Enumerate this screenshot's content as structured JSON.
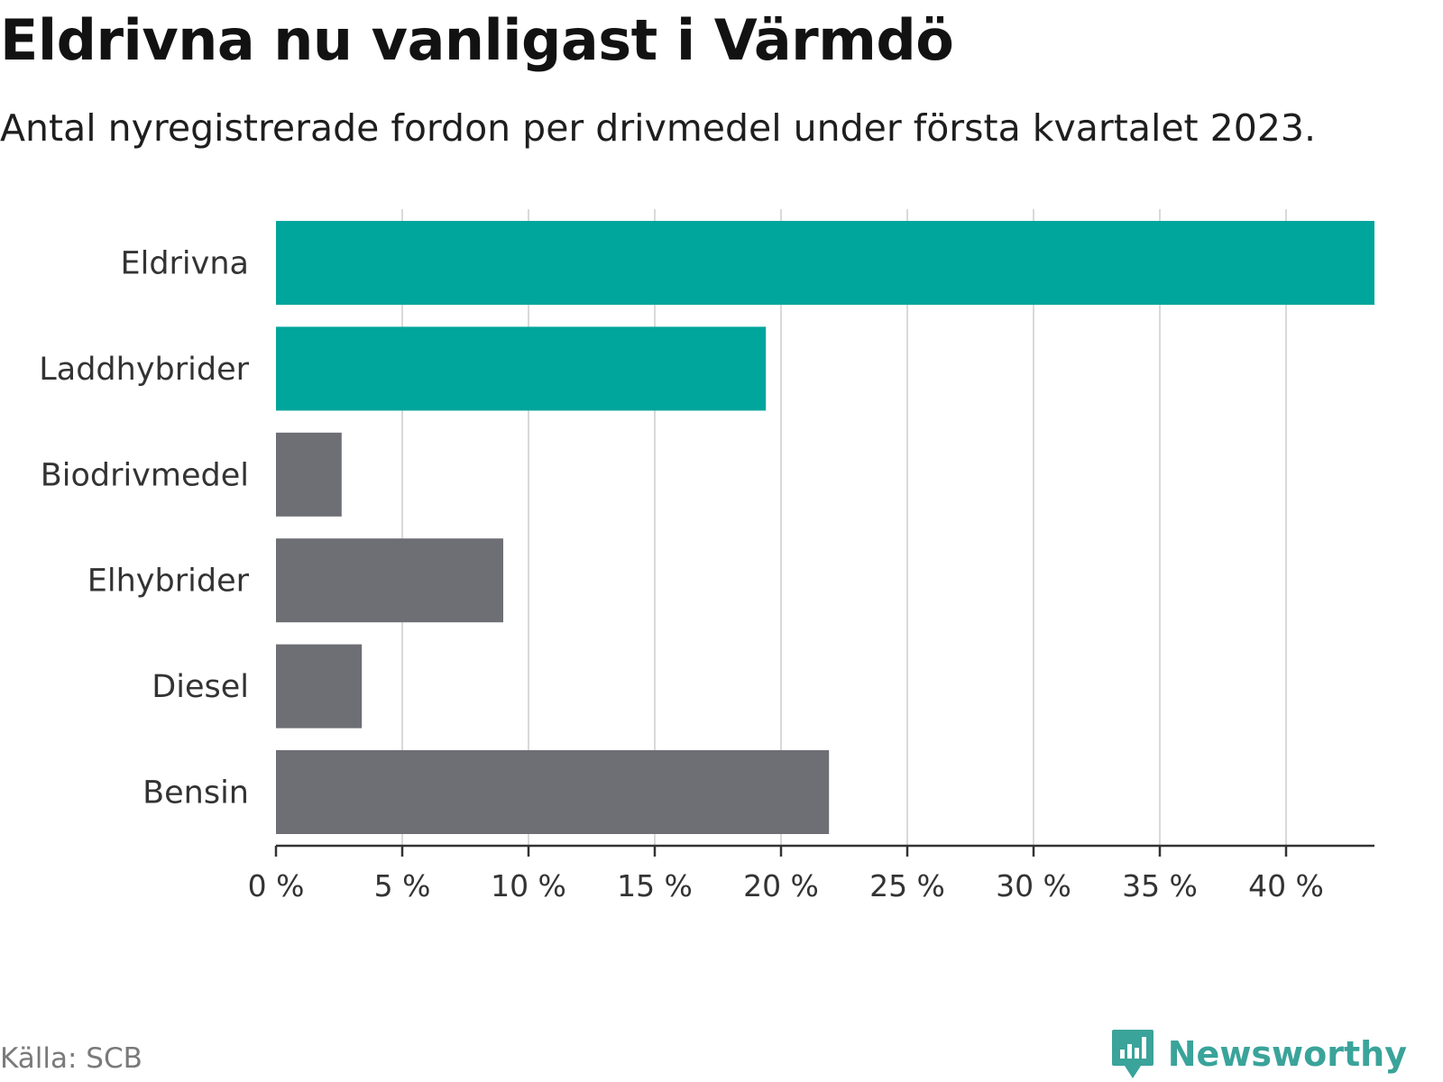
{
  "header": {
    "title": "Eldrivna nu vanligast i Värmdö",
    "subtitle": "Antal nyregistrerade fordon per drivmedel under första kvartalet 2023."
  },
  "footer": {
    "source": "Källa: SCB",
    "brand": "Newsworthy"
  },
  "colors": {
    "highlight": "#00a59b",
    "default": "#6e6e75",
    "grid": "#d9d9d9",
    "axis": "#333333",
    "brand": "#3aa39a"
  },
  "chart_data": {
    "type": "bar",
    "orientation": "horizontal",
    "title": "Eldrivna nu vanligast i Värmdö",
    "subtitle": "Antal nyregistrerade fordon per drivmedel under första kvartalet 2023.",
    "xlabel": "",
    "ylabel": "",
    "unit": "%",
    "categories": [
      "Eldrivna",
      "Laddhybrider",
      "Biodrivmedel",
      "Elhybrider",
      "Diesel",
      "Bensin"
    ],
    "values": [
      43.5,
      19.4,
      2.6,
      9.0,
      3.4,
      21.9
    ],
    "highlighted": [
      true,
      true,
      false,
      false,
      false,
      false
    ],
    "xlim": [
      0,
      43.5
    ],
    "ticks": [
      0,
      5,
      10,
      15,
      20,
      25,
      30,
      35,
      40
    ],
    "tick_labels": [
      "0 %",
      "5 %",
      "10 %",
      "15 %",
      "20 %",
      "25 %",
      "30 %",
      "35 %",
      "40 %"
    ],
    "grid": true
  }
}
